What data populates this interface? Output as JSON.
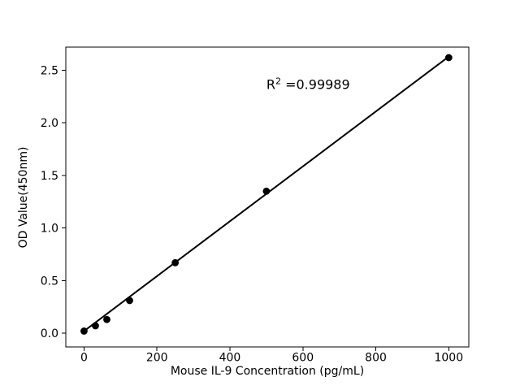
{
  "chart_data": {
    "type": "scatter",
    "title": "",
    "xlabel": "Mouse IL-9 Concentration (pg/mL)",
    "ylabel": "OD Value(450nm)",
    "series": [
      {
        "name": "standard-curve-points",
        "x": [
          0,
          31.25,
          62.5,
          125,
          250,
          500,
          1000
        ],
        "y": [
          0.02,
          0.07,
          0.13,
          0.31,
          0.67,
          1.35,
          2.62
        ]
      }
    ],
    "fit_line": {
      "x": [
        0,
        1000
      ],
      "y": [
        0.02,
        2.63
      ]
    },
    "annotation": {
      "text": "R² =0.99989",
      "x": 500,
      "y": 2.36
    },
    "x_ticks": {
      "values": [
        0,
        200,
        400,
        600,
        800,
        1000
      ],
      "labels": [
        "0",
        "200",
        "400",
        "600",
        "800",
        "1000"
      ]
    },
    "y_ticks": {
      "values": [
        0.0,
        0.5,
        1.0,
        1.5,
        2.0,
        2.5
      ],
      "labels": [
        "0.0",
        "0.5",
        "1.0",
        "1.5",
        "2.0",
        "2.5"
      ]
    },
    "xlim": [
      -50,
      1055
    ],
    "ylim": [
      -0.131,
      2.72
    ],
    "grid": false,
    "legend": null,
    "colors": {
      "marker": "#000000",
      "line": "#000000",
      "axis": "#000000",
      "text": "#000000",
      "background": "#ffffff"
    }
  }
}
